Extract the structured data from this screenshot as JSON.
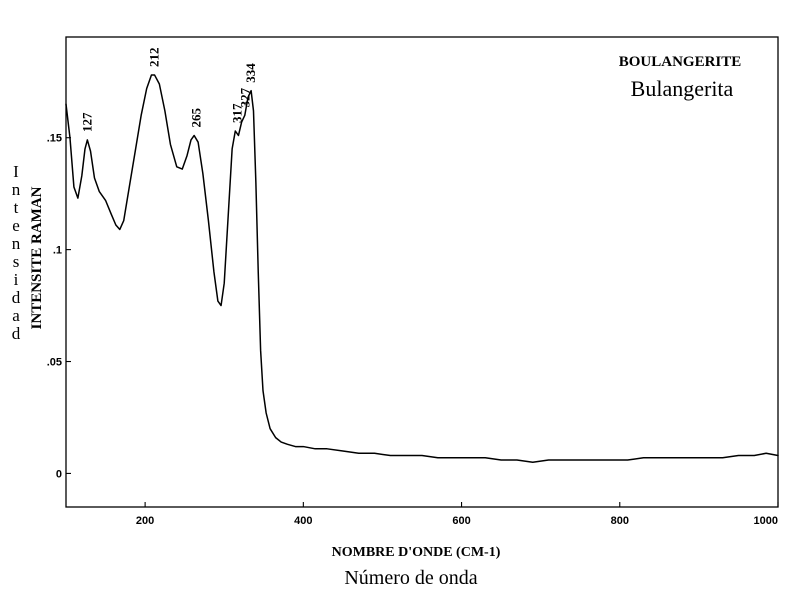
{
  "chart_data": {
    "type": "line",
    "title": "BOULANGERITE",
    "subtitle": "Bulangerita",
    "xlabel": "NOMBRE D'ONDE (CM-1)",
    "xlabel_secondary": "Número de onda",
    "ylabel": "INTENSITE RAMAN",
    "ylabel_secondary": "Intensidad",
    "xlim": [
      100,
      1000
    ],
    "ylim": [
      -0.015,
      0.195
    ],
    "x_ticks": [
      {
        "value": 200,
        "label": "200"
      },
      {
        "value": 400,
        "label": "400"
      },
      {
        "value": 600,
        "label": "600"
      },
      {
        "value": 800,
        "label": "800"
      },
      {
        "value": 1000,
        "label": "1000"
      }
    ],
    "y_ticks": [
      {
        "value": 0,
        "label": "0"
      },
      {
        "value": 0.05,
        "label": ".05"
      },
      {
        "value": 0.1,
        "label": ".1"
      },
      {
        "value": 0.15,
        "label": ".15"
      }
    ],
    "grid": false,
    "legend": "none",
    "peak_labels": [
      {
        "x": 127,
        "y": 0.149,
        "text": "127"
      },
      {
        "x": 212,
        "y": 0.178,
        "text": "212"
      },
      {
        "x": 265,
        "y": 0.151,
        "text": "265"
      },
      {
        "x": 317,
        "y": 0.153,
        "text": "317"
      },
      {
        "x": 327,
        "y": 0.16,
        "text": "327"
      },
      {
        "x": 334,
        "y": 0.171,
        "text": "334"
      }
    ],
    "series": [
      {
        "points": [
          [
            100,
            0.165
          ],
          [
            105,
            0.15
          ],
          [
            110,
            0.128
          ],
          [
            115,
            0.123
          ],
          [
            120,
            0.133
          ],
          [
            124,
            0.145
          ],
          [
            127,
            0.149
          ],
          [
            131,
            0.144
          ],
          [
            136,
            0.132
          ],
          [
            142,
            0.126
          ],
          [
            150,
            0.122
          ],
          [
            157,
            0.116
          ],
          [
            163,
            0.111
          ],
          [
            168,
            0.109
          ],
          [
            173,
            0.113
          ],
          [
            180,
            0.128
          ],
          [
            188,
            0.145
          ],
          [
            195,
            0.16
          ],
          [
            202,
            0.172
          ],
          [
            208,
            0.178
          ],
          [
            212,
            0.178
          ],
          [
            218,
            0.174
          ],
          [
            225,
            0.162
          ],
          [
            232,
            0.147
          ],
          [
            240,
            0.137
          ],
          [
            247,
            0.136
          ],
          [
            253,
            0.142
          ],
          [
            258,
            0.149
          ],
          [
            262,
            0.151
          ],
          [
            267,
            0.148
          ],
          [
            273,
            0.134
          ],
          [
            280,
            0.113
          ],
          [
            287,
            0.09
          ],
          [
            292,
            0.077
          ],
          [
            296,
            0.075
          ],
          [
            300,
            0.085
          ],
          [
            305,
            0.115
          ],
          [
            310,
            0.145
          ],
          [
            314,
            0.153
          ],
          [
            318,
            0.151
          ],
          [
            322,
            0.157
          ],
          [
            326,
            0.16
          ],
          [
            330,
            0.168
          ],
          [
            334,
            0.171
          ],
          [
            337,
            0.162
          ],
          [
            340,
            0.13
          ],
          [
            343,
            0.09
          ],
          [
            346,
            0.055
          ],
          [
            349,
            0.037
          ],
          [
            353,
            0.027
          ],
          [
            358,
            0.02
          ],
          [
            365,
            0.016
          ],
          [
            372,
            0.014
          ],
          [
            380,
            0.013
          ],
          [
            390,
            0.012
          ],
          [
            400,
            0.012
          ],
          [
            415,
            0.011
          ],
          [
            430,
            0.011
          ],
          [
            450,
            0.01
          ],
          [
            470,
            0.009
          ],
          [
            490,
            0.009
          ],
          [
            510,
            0.008
          ],
          [
            530,
            0.008
          ],
          [
            550,
            0.008
          ],
          [
            570,
            0.007
          ],
          [
            590,
            0.007
          ],
          [
            610,
            0.007
          ],
          [
            630,
            0.007
          ],
          [
            650,
            0.006
          ],
          [
            670,
            0.006
          ],
          [
            690,
            0.005
          ],
          [
            710,
            0.006
          ],
          [
            730,
            0.006
          ],
          [
            750,
            0.006
          ],
          [
            770,
            0.006
          ],
          [
            790,
            0.006
          ],
          [
            810,
            0.006
          ],
          [
            830,
            0.007
          ],
          [
            850,
            0.007
          ],
          [
            870,
            0.007
          ],
          [
            890,
            0.007
          ],
          [
            910,
            0.007
          ],
          [
            930,
            0.007
          ],
          [
            950,
            0.008
          ],
          [
            970,
            0.008
          ],
          [
            985,
            0.009
          ],
          [
            1000,
            0.008
          ]
        ]
      }
    ]
  }
}
